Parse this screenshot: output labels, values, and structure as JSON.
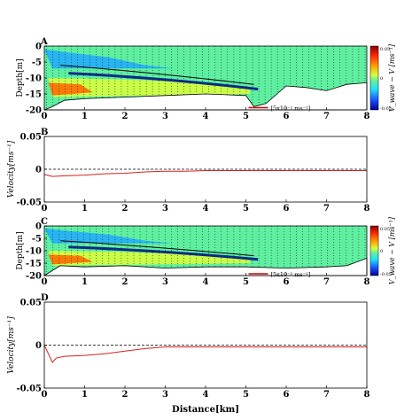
{
  "chart_data": [
    {
      "panel": "A",
      "type": "heatmap",
      "xlabel": "",
      "ylabel": "Depth[m]",
      "xlim": [
        0,
        8
      ],
      "ylim": [
        -20,
        0
      ],
      "xticks": [
        "0",
        "1",
        "2",
        "3",
        "4",
        "5",
        "6",
        "7",
        "8"
      ],
      "yticks": [
        "0",
        "-5",
        "-10",
        "-15",
        "-20"
      ],
      "colorbar": {
        "label": "V_wave − V [ms⁻¹]",
        "max": "0.05",
        "mid": "0",
        "min": "-0.05"
      },
      "scale_label": "5x10⁻² ms⁻¹",
      "bottom_profile": [
        [
          0,
          -20
        ],
        [
          0.2,
          -19
        ],
        [
          0.5,
          -17
        ],
        [
          1,
          -16.5
        ],
        [
          2,
          -16
        ],
        [
          3,
          -15.5
        ],
        [
          4,
          -15
        ],
        [
          5,
          -15.5
        ],
        [
          5.2,
          -19
        ],
        [
          5.5,
          -18
        ],
        [
          6,
          -12.5
        ],
        [
          6.5,
          -13
        ],
        [
          7,
          -14
        ],
        [
          7.5,
          -12
        ],
        [
          8,
          -11.5
        ]
      ]
    },
    {
      "panel": "B",
      "type": "line",
      "xlabel": "",
      "ylabel": "Velocity[ms⁻¹]",
      "xlim": [
        0,
        8
      ],
      "ylim": [
        -0.05,
        0.05
      ],
      "xticks": [
        "0",
        "1",
        "2",
        "3",
        "4",
        "5",
        "6",
        "7",
        "8"
      ],
      "yticks": [
        "0.05",
        "0",
        "-0.05"
      ],
      "reference_line": 0,
      "series": [
        {
          "x": [
            0,
            0.2,
            0.5,
            1,
            1.5,
            2,
            2.5,
            3,
            3.5,
            4,
            4.5,
            5,
            5.5,
            6,
            6.5,
            7,
            7.5,
            8
          ],
          "y": [
            -0.008,
            -0.011,
            -0.01,
            -0.009,
            -0.007,
            -0.006,
            -0.004,
            -0.003,
            -0.003,
            -0.002,
            -0.002,
            -0.002,
            -0.002,
            -0.002,
            -0.002,
            -0.002,
            -0.002,
            -0.002
          ]
        }
      ]
    },
    {
      "panel": "C",
      "type": "heatmap",
      "xlabel": "",
      "ylabel": "Depth[m]",
      "xlim": [
        0,
        8
      ],
      "ylim": [
        -20,
        0
      ],
      "xticks": [
        "0",
        "1",
        "2",
        "3",
        "4",
        "5",
        "6",
        "7",
        "8"
      ],
      "yticks": [
        "0",
        "-5",
        "-10",
        "-15",
        "-20"
      ],
      "colorbar": {
        "label": "V_wave − V [ms⁻¹]",
        "max": "0.05",
        "mid": "0",
        "min": "-0.05"
      },
      "scale_label": "5x10⁻² ms⁻¹",
      "bottom_profile": [
        [
          0,
          -20
        ],
        [
          0.2,
          -18
        ],
        [
          0.4,
          -16
        ],
        [
          1,
          -16.5
        ],
        [
          2,
          -16
        ],
        [
          3,
          -17
        ],
        [
          4,
          -16.5
        ],
        [
          5,
          -16.5
        ],
        [
          6,
          -17
        ],
        [
          7,
          -16.5
        ],
        [
          7.5,
          -16
        ],
        [
          8,
          -13
        ]
      ]
    },
    {
      "panel": "D",
      "type": "line",
      "xlabel": "Distance[km]",
      "ylabel": "Velocity[ms⁻¹]",
      "xlim": [
        0,
        8
      ],
      "ylim": [
        -0.05,
        0.05
      ],
      "xticks": [
        "0",
        "1",
        "2",
        "3",
        "4",
        "5",
        "6",
        "7",
        "8"
      ],
      "yticks": [
        "0.05",
        "0",
        "-0.05"
      ],
      "reference_line": 0,
      "series": [
        {
          "x": [
            0,
            0.1,
            0.2,
            0.3,
            0.5,
            1,
            1.5,
            2,
            2.5,
            3,
            3.5,
            4,
            4.5,
            5,
            5.5,
            6,
            6.5,
            7,
            7.5,
            8
          ],
          "y": [
            0,
            -0.01,
            -0.02,
            -0.015,
            -0.013,
            -0.012,
            -0.01,
            -0.007,
            -0.004,
            -0.002,
            -0.002,
            -0.002,
            -0.002,
            -0.002,
            -0.002,
            -0.002,
            -0.002,
            -0.002,
            -0.002,
            -0.002
          ]
        }
      ]
    }
  ]
}
